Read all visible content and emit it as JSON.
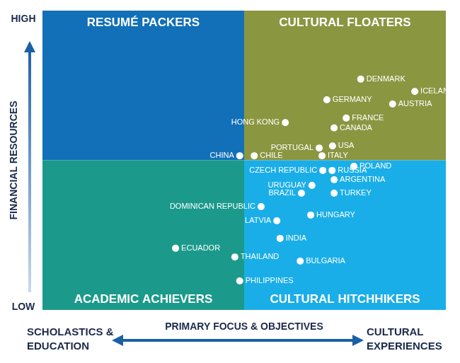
{
  "chart_data": {
    "type": "scatter",
    "y_axis_label": "FINANCIAL RESOURCES",
    "y_high_label": "HIGH",
    "y_low_label": "LOW",
    "x_axis_label": "PRIMARY FOCUS & OBJECTIVES",
    "x_low_label": [
      "SCHOLASTICS &",
      "EDUCATION"
    ],
    "x_high_label": [
      "CULTURAL",
      "EXPERIENCES"
    ],
    "xlim": [
      0,
      100
    ],
    "ylim": [
      0,
      100
    ],
    "x_split": 50,
    "y_split": 50,
    "tick_labels": false,
    "grid": false,
    "color": "#ffffff",
    "quadrants": [
      {
        "label": "RESUMÉ PACKERS",
        "color": "#1170b8"
      },
      {
        "label": "CULTURAL FLOATERS",
        "color": "#8b9641"
      },
      {
        "label": "ACADEMIC ACHIEVERS",
        "color": "#1b9a8b"
      },
      {
        "label": "CULTURAL HITCHHIKERS",
        "color": "#1aaee8"
      }
    ],
    "points": [
      {
        "label": "DENMARK",
        "x": 78.9,
        "y": 77.1
      },
      {
        "label": "ICELAND",
        "x": 92.3,
        "y": 73.0
      },
      {
        "label": "AUSTRIA",
        "x": 86.8,
        "y": 68.8
      },
      {
        "label": "GERMANY",
        "x": 70.5,
        "y": 70.2
      },
      {
        "label": "FRANCE",
        "x": 75.3,
        "y": 64.1
      },
      {
        "label": "CANADA",
        "x": 72.3,
        "y": 60.8
      },
      {
        "label": "HONG KONG",
        "x": 60.2,
        "y": 62.6
      },
      {
        "label": "PORTUGAL",
        "x": 68.6,
        "y": 54.1
      },
      {
        "label": "USA",
        "x": 71.9,
        "y": 54.8
      },
      {
        "label": "ITALY",
        "x": 69.3,
        "y": 51.5
      },
      {
        "label": "CHINA",
        "x": 48.9,
        "y": 51.5
      },
      {
        "label": "CHILE",
        "x": 52.5,
        "y": 51.5
      },
      {
        "label": "POLAND",
        "x": 77.2,
        "y": 48.0
      },
      {
        "label": "CZECH REPUBLIC",
        "x": 69.5,
        "y": 46.6
      },
      {
        "label": "RUSSIA",
        "x": 71.8,
        "y": 46.6
      },
      {
        "label": "ARGENTINA",
        "x": 72.3,
        "y": 43.5
      },
      {
        "label": "URUGUAY",
        "x": 66.8,
        "y": 41.6
      },
      {
        "label": "BRAZIL",
        "x": 64.2,
        "y": 39.0
      },
      {
        "label": "TURKEY",
        "x": 72.3,
        "y": 39.0
      },
      {
        "label": "DOMINICAN REPUBLIC",
        "x": 54.2,
        "y": 34.5
      },
      {
        "label": "HUNGARY",
        "x": 66.5,
        "y": 31.7
      },
      {
        "label": "LATVIA",
        "x": 58.1,
        "y": 29.8
      },
      {
        "label": "INDIA",
        "x": 58.9,
        "y": 23.9
      },
      {
        "label": "ECUADOR",
        "x": 33.0,
        "y": 20.6
      },
      {
        "label": "THAILAND",
        "x": 47.7,
        "y": 17.7
      },
      {
        "label": "BULGARIA",
        "x": 63.9,
        "y": 16.3
      },
      {
        "label": "PHILIPPINES",
        "x": 48.9,
        "y": 9.7
      }
    ]
  }
}
